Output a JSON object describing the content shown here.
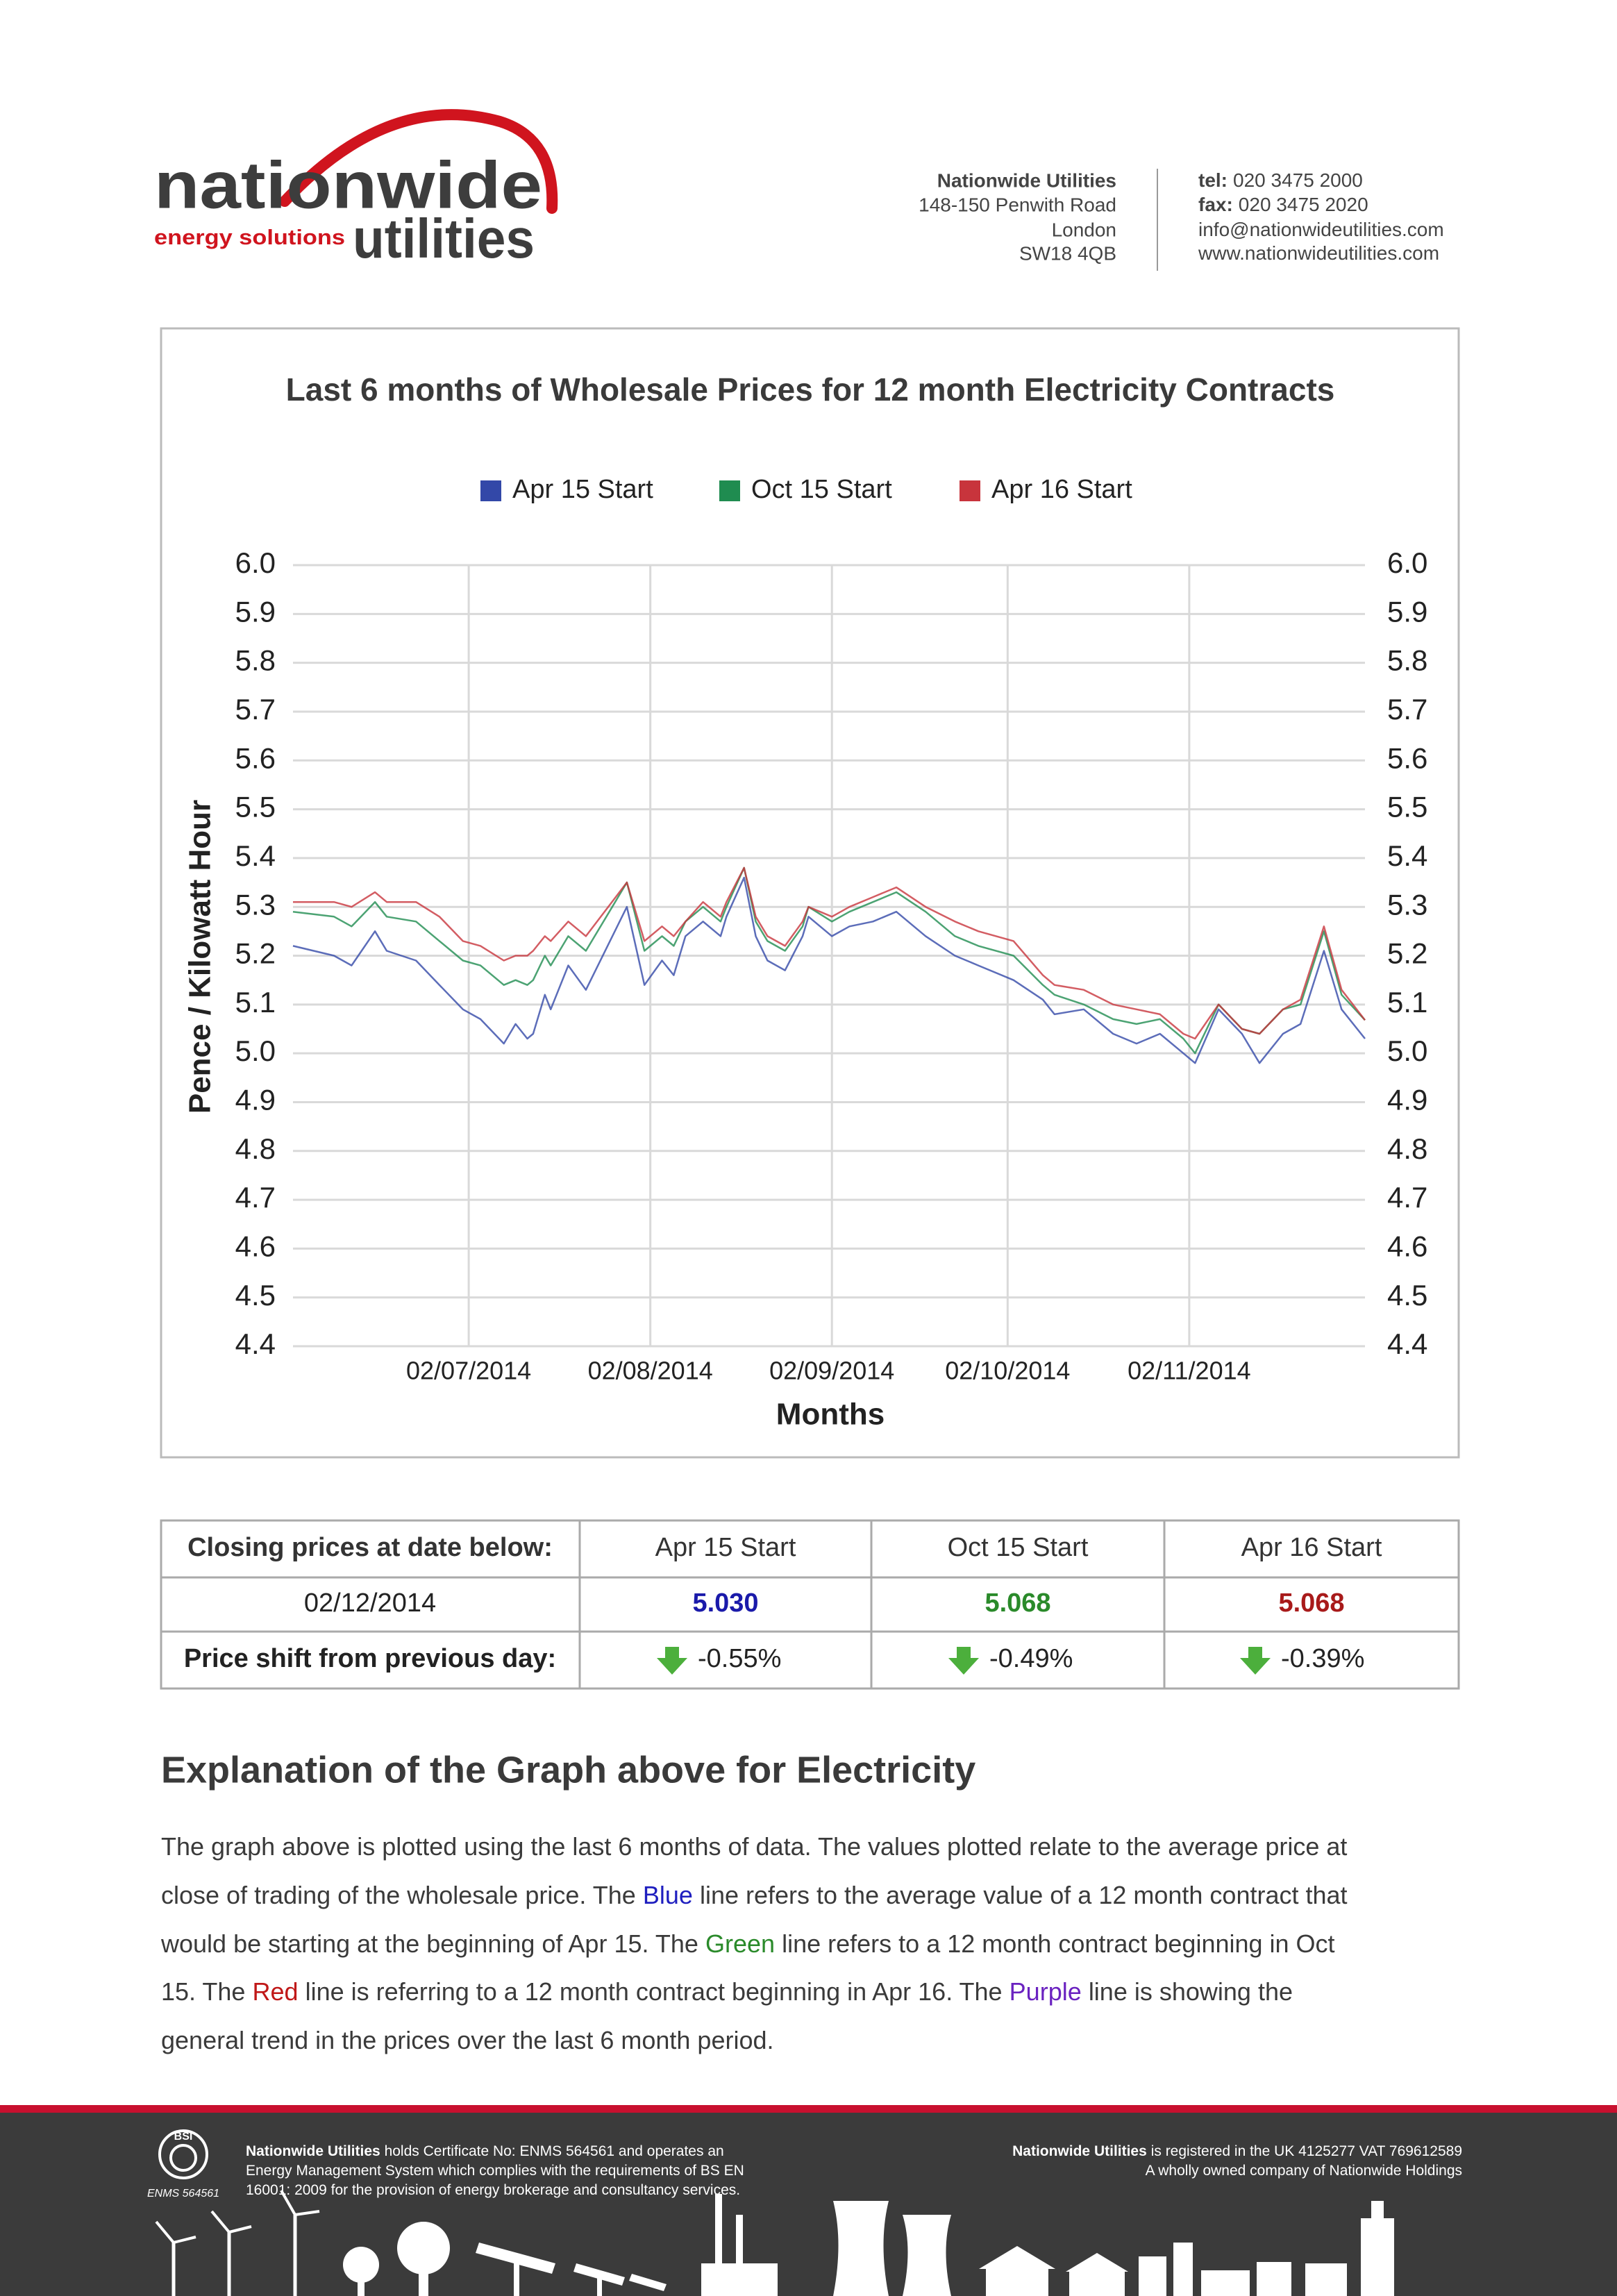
{
  "header": {
    "logo": {
      "name": "nationwide",
      "tagline": "energy solutions",
      "name2": "utilities"
    },
    "address": [
      "Nationwide Utilities",
      "148-150 Penwith Road",
      "London",
      "SW18 4QB"
    ],
    "contact": [
      {
        "label": "tel:",
        "value": "020 3475 2000"
      },
      {
        "label": "fax:",
        "value": "020 3475 2020"
      },
      {
        "value": "info@nationwideutilities.com"
      },
      {
        "value": "www.nationwideutilities.com"
      }
    ]
  },
  "chart_data": {
    "type": "line",
    "title": "Last 6 months of Wholesale Prices for 12 month Electricity Contracts",
    "x_label": "Months",
    "y_label": "Pence / Kilowatt Hour",
    "grid": true,
    "x": [
      "02/06/2014",
      "09/06/2014",
      "12/06/2014",
      "16/06/2014",
      "18/06/2014",
      "23/06/2014",
      "27/06/2014",
      "01/07/2014",
      "04/07/2014",
      "08/07/2014",
      "10/07/2014",
      "12/07/2014",
      "13/07/2014",
      "15/07/2014",
      "16/07/2014",
      "19/07/2014",
      "22/07/2014",
      "29/07/2014",
      "01/08/2014",
      "04/08/2014",
      "06/08/2014",
      "08/08/2014",
      "11/08/2014",
      "14/08/2014",
      "15/08/2014",
      "18/08/2014",
      "20/08/2014",
      "22/08/2014",
      "25/08/2014",
      "28/08/2014",
      "29/08/2014",
      "02/09/2014",
      "05/09/2014",
      "09/09/2014",
      "13/09/2014",
      "18/09/2014",
      "23/09/2014",
      "27/09/2014",
      "03/10/2014",
      "08/10/2014",
      "10/10/2014",
      "15/10/2014",
      "20/10/2014",
      "24/10/2014",
      "28/10/2014",
      "01/11/2014",
      "03/11/2014",
      "07/11/2014",
      "11/11/2014",
      "14/11/2014",
      "18/11/2014",
      "21/11/2014",
      "25/11/2014",
      "28/11/2014",
      "02/12/2014"
    ],
    "xlim": [
      "02/06/2014",
      "02/12/2014"
    ],
    "xticks": [
      "02/07/2014",
      "02/08/2014",
      "02/09/2014",
      "02/10/2014",
      "02/11/2014"
    ],
    "ylim": [
      4.4,
      6.0
    ],
    "yticks": [
      {
        "value": 6,
        "label": "6.0"
      },
      5.9,
      5.8,
      5.7,
      5.6,
      5.5,
      5.4,
      5.3,
      5.2,
      5.1,
      {
        "value": 5,
        "label": "5.0"
      },
      4.9,
      4.8,
      4.7,
      4.6,
      4.5,
      4.4
    ],
    "y2lim": [
      4.4,
      6.0
    ],
    "y2ticks": [
      {
        "value": 6,
        "label": "6.0"
      },
      5.9,
      5.8,
      5.7,
      5.6,
      5.5,
      5.4,
      5.3,
      5.2,
      5.1,
      {
        "value": 5,
        "label": "5.0"
      },
      4.9,
      4.8,
      4.7,
      4.6,
      4.5,
      4.4
    ],
    "series": [
      {
        "name": "Apr 15 Start",
        "color": "#3348a8",
        "values": [
          5.22,
          5.2,
          5.18,
          5.25,
          5.21,
          5.19,
          5.14,
          5.09,
          5.07,
          5.02,
          5.06,
          5.03,
          5.04,
          5.12,
          5.09,
          5.18,
          5.13,
          5.3,
          5.14,
          5.19,
          5.16,
          5.24,
          5.27,
          5.24,
          5.28,
          5.36,
          5.24,
          5.19,
          5.17,
          5.24,
          5.28,
          5.24,
          5.26,
          5.27,
          5.29,
          5.24,
          5.2,
          5.18,
          5.15,
          5.11,
          5.08,
          5.09,
          5.04,
          5.02,
          5.04,
          5.0,
          4.98,
          5.09,
          5.04,
          4.98,
          5.04,
          5.06,
          5.21,
          5.09,
          5.03
        ]
      },
      {
        "name": "Oct 15 Start",
        "color": "#1f8c50",
        "values": [
          5.29,
          5.28,
          5.26,
          5.31,
          5.28,
          5.27,
          5.23,
          5.19,
          5.18,
          5.14,
          5.15,
          5.14,
          5.15,
          5.2,
          5.18,
          5.24,
          5.21,
          5.35,
          5.21,
          5.24,
          5.22,
          5.27,
          5.3,
          5.27,
          5.3,
          5.38,
          5.27,
          5.23,
          5.21,
          5.26,
          5.3,
          5.27,
          5.29,
          5.31,
          5.33,
          5.29,
          5.24,
          5.22,
          5.2,
          5.14,
          5.12,
          5.1,
          5.07,
          5.06,
          5.07,
          5.03,
          5.0,
          5.1,
          5.05,
          5.04,
          5.09,
          5.1,
          5.25,
          5.12,
          5.068
        ]
      },
      {
        "name": "Apr 16 Start",
        "color": "#c8343c",
        "values": [
          5.31,
          5.31,
          5.3,
          5.33,
          5.31,
          5.31,
          5.28,
          5.23,
          5.22,
          5.19,
          5.2,
          5.2,
          5.21,
          5.24,
          5.23,
          5.27,
          5.24,
          5.35,
          5.23,
          5.26,
          5.24,
          5.27,
          5.31,
          5.28,
          5.31,
          5.38,
          5.28,
          5.24,
          5.22,
          5.27,
          5.3,
          5.28,
          5.3,
          5.32,
          5.34,
          5.3,
          5.27,
          5.25,
          5.23,
          5.16,
          5.14,
          5.13,
          5.1,
          5.09,
          5.08,
          5.04,
          5.03,
          5.1,
          5.05,
          5.04,
          5.09,
          5.11,
          5.26,
          5.13,
          5.068
        ]
      }
    ]
  },
  "table": {
    "header": [
      "Closing prices at date below:",
      "Apr 15 Start",
      "Oct 15 Start",
      "Apr 16 Start"
    ],
    "rows": [
      [
        "02/12/2014",
        "5.030",
        "5.068",
        "5.068"
      ],
      [
        "Price shift from previous day:",
        "-0.55%",
        "-0.49%",
        "-0.39%"
      ]
    ],
    "value_colors": [
      "#1a1aaa",
      "#2a8a2a",
      "#a81a1a"
    ]
  },
  "explanation": {
    "heading": "Explanation of the Graph above for Electricity",
    "lines": [
      [
        {
          "text": "The graph above is plotted using the last 6 months of data. The values plotted relate to the average price at"
        }
      ],
      [
        {
          "text": "close of trading of the wholesale price. The"
        },
        {
          "text": "Blue",
          "color": "#1f1fbf"
        },
        {
          "text": "line refers to the average value of a 12 month contract that"
        }
      ],
      [
        {
          "text": "would be starting at the beginning of Apr 15. The"
        },
        {
          "text": "Green",
          "color": "#2a8a2a"
        },
        {
          "text": "line refers to a 12 month contract beginning in Oct"
        }
      ],
      [
        {
          "text": "15. The"
        },
        {
          "text": "Red",
          "color": "#c01818"
        },
        {
          "text": "line is referring to a 12 month contract beginning in Apr 16. The"
        },
        {
          "text": "Purple",
          "color": "#6a22c0"
        },
        {
          "text": "line is showing the"
        }
      ],
      [
        {
          "text": "general trend in the prices over the last 6 month period."
        }
      ]
    ]
  },
  "footer": {
    "badge": {
      "mark": "BSI",
      "caption": "ENMS 564561"
    },
    "left": [
      [
        {
          "text": "Nationwide Utilities",
          "bold": true
        },
        {
          "text": "holds Certificate No: ENMS 564561 and operates an"
        }
      ],
      [
        {
          "text": "Energy Management System which complies with the requirements of BS EN"
        }
      ],
      [
        {
          "text": "16001: 2009 for the provision of energy brokerage and consultancy services."
        }
      ]
    ],
    "right": [
      [
        {
          "text": "Nationwide Utilities",
          "bold": true
        },
        {
          "text": "is registered in the UK 4125277 VAT 769612589"
        }
      ],
      [
        {
          "text": "A wholly owned company of Nationwide Holdings"
        }
      ]
    ]
  }
}
